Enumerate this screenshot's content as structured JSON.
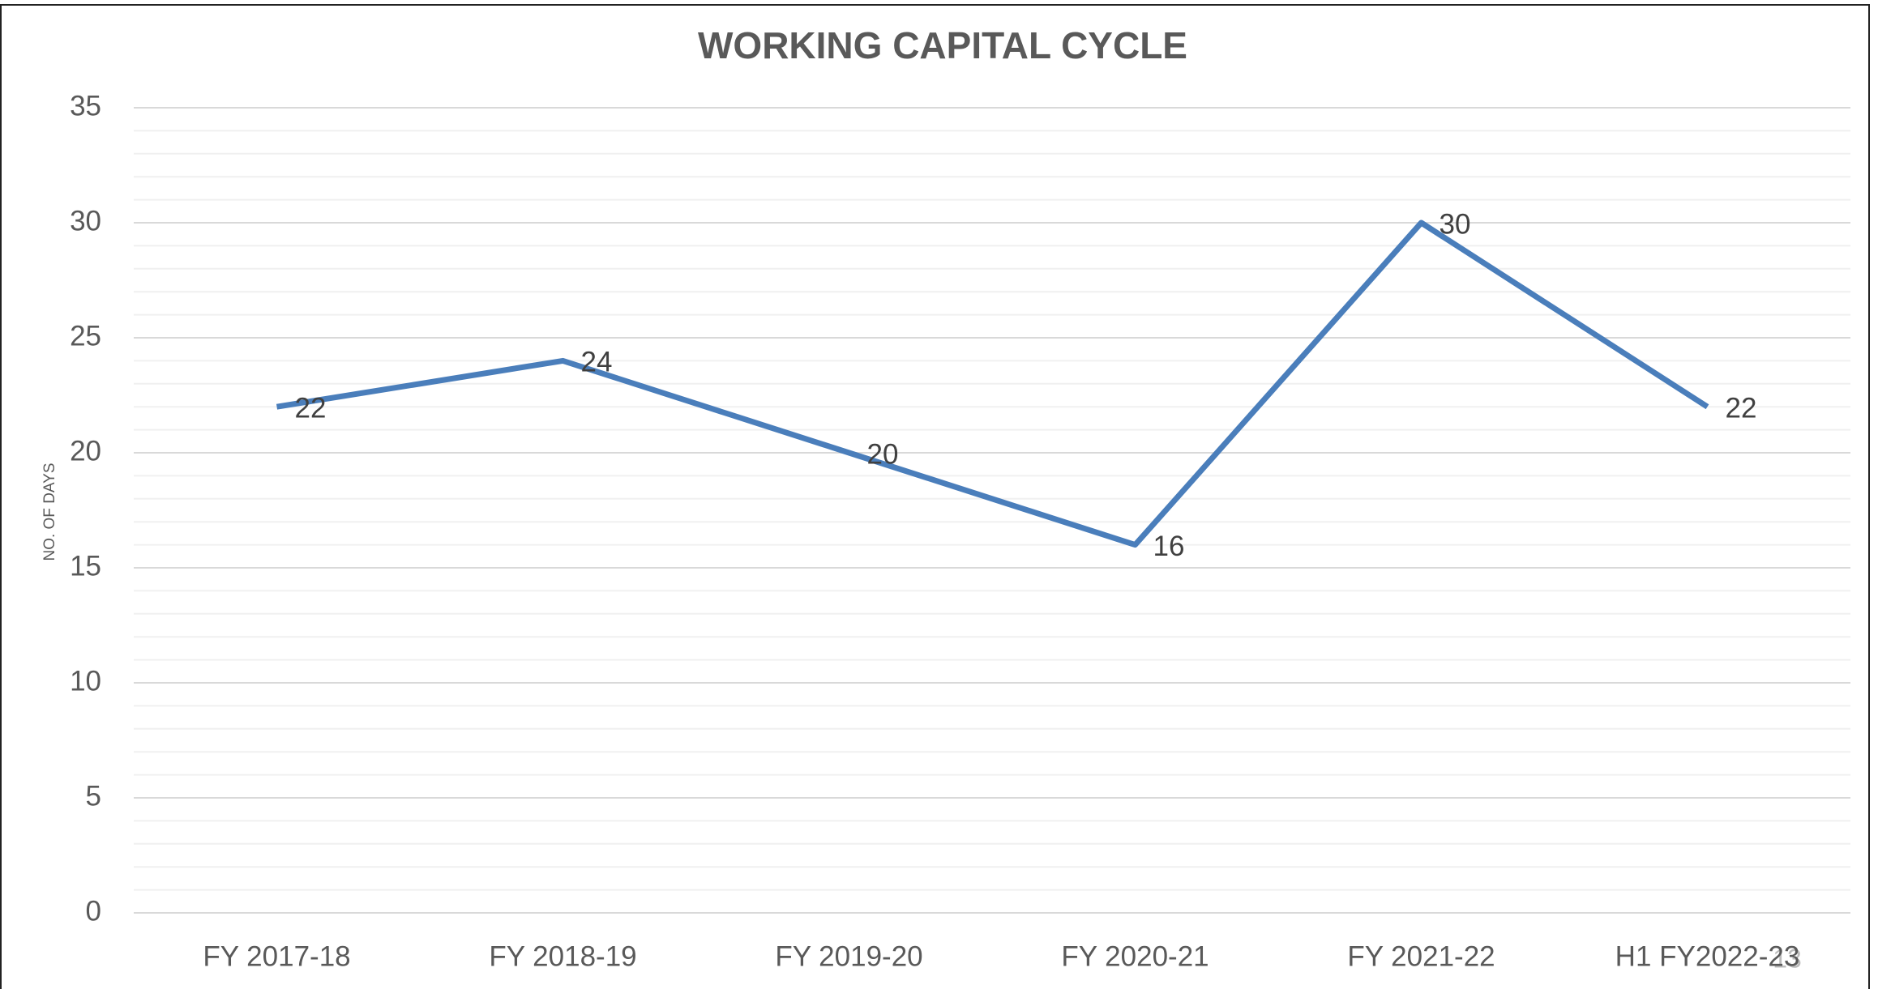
{
  "chart_data": {
    "type": "line",
    "title": "WORKING CAPITAL CYCLE",
    "y_label": "NO. OF DAYS",
    "categories": [
      "FY 2017-18",
      "FY 2018-19",
      "FY 2019-20",
      "FY 2020-21",
      "FY 2021-22",
      "H1 FY2022-23"
    ],
    "values": [
      22,
      24,
      20,
      16,
      30,
      22
    ],
    "color": "#4a7ebb",
    "ylim": [
      0,
      35
    ],
    "yticks": [
      0,
      5,
      10,
      15,
      20,
      25,
      30,
      35
    ],
    "grid": true,
    "minor_grid": true,
    "page_number": "13"
  }
}
